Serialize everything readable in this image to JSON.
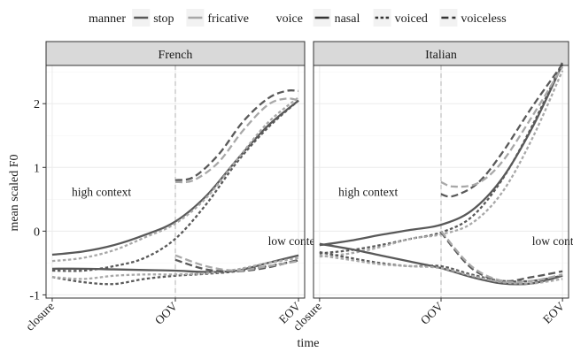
{
  "chart_data": {
    "type": "line",
    "x_axis": {
      "label": "time",
      "ticks": [
        {
          "pos": 0,
          "label": "closure"
        },
        {
          "pos": 1,
          "label": "OOV"
        },
        {
          "pos": 2,
          "label": "EOV"
        }
      ],
      "range": [
        -0.05,
        2.05
      ]
    },
    "y_axis": {
      "label": "mean scaled F0",
      "ticks": [
        -1,
        0,
        1,
        2
      ],
      "range": [
        -1.05,
        2.6
      ]
    },
    "legend": {
      "position": "top",
      "groups": [
        {
          "title": "manner",
          "items": [
            {
              "label": "stop",
              "color": "#595959",
              "dash": "solid"
            },
            {
              "label": "fricative",
              "color": "#a8a8a8",
              "dash": "solid"
            }
          ]
        },
        {
          "title": "voice",
          "items": [
            {
              "label": "nasal",
              "color": "#333333",
              "dash": "solid"
            },
            {
              "label": "voiced",
              "color": "#333333",
              "dash": "dotted"
            },
            {
              "label": "voiceless",
              "color": "#333333",
              "dash": "dashed"
            }
          ]
        }
      ]
    },
    "colors": {
      "stop": "#595959",
      "fricative": "#a8a8a8",
      "strip_bg": "#d9d9d9",
      "panel_border": "#333333",
      "grid": "#ebebeb",
      "oov_line": "#bdbdbd"
    },
    "panels": [
      {
        "title": "French",
        "annotations": [
          {
            "text": "high context",
            "x": 0.4,
            "y": 0.55
          },
          {
            "text": "low context",
            "x": 1.98,
            "y": -0.22
          }
        ],
        "series": [
          {
            "manner": "stop",
            "voice": "nasal",
            "x": [
              0,
              0.25,
              0.5,
              0.75,
              1,
              1.25,
              1.5,
              1.75,
              2
            ],
            "y": [
              -0.37,
              -0.32,
              -0.22,
              -0.06,
              0.15,
              0.55,
              1.12,
              1.65,
              2.05
            ]
          },
          {
            "manner": "stop",
            "voice": "voiced",
            "x": [
              0,
              0.25,
              0.5,
              0.75,
              1,
              1.25,
              1.5,
              1.75,
              2
            ],
            "y": [
              -0.62,
              -0.62,
              -0.55,
              -0.42,
              -0.12,
              0.42,
              1.08,
              1.62,
              2.05
            ]
          },
          {
            "manner": "fricative",
            "voice": "voiced",
            "x": [
              0,
              0.25,
              0.5,
              0.75,
              1,
              1.25,
              1.5,
              1.75,
              2
            ],
            "y": [
              -0.47,
              -0.42,
              -0.3,
              -0.1,
              0.12,
              0.52,
              1.12,
              1.7,
              2.1
            ]
          },
          {
            "manner": "stop",
            "voice": "voiceless",
            "x": [
              1,
              1.15,
              1.35,
              1.55,
              1.75,
              1.9,
              2
            ],
            "y": [
              0.8,
              0.85,
              1.2,
              1.72,
              2.08,
              2.2,
              2.2
            ]
          },
          {
            "manner": "fricative",
            "voice": "voiceless",
            "x": [
              1,
              1.15,
              1.35,
              1.55,
              1.75,
              1.9,
              2
            ],
            "y": [
              0.77,
              0.8,
              1.08,
              1.58,
              1.98,
              2.08,
              2.05
            ]
          },
          {
            "manner": "stop",
            "voice": "nasal",
            "x": [
              0,
              0.25,
              0.5,
              0.75,
              1,
              1.25,
              1.5,
              1.75,
              2
            ],
            "y": [
              -0.59,
              -0.59,
              -0.6,
              -0.61,
              -0.62,
              -0.64,
              -0.62,
              -0.5,
              -0.38
            ]
          },
          {
            "manner": "stop",
            "voice": "voiced",
            "x": [
              0,
              0.25,
              0.5,
              0.75,
              1,
              1.25,
              1.5,
              1.75,
              2
            ],
            "y": [
              -0.72,
              -0.8,
              -0.83,
              -0.75,
              -0.7,
              -0.67,
              -0.63,
              -0.55,
              -0.46
            ]
          },
          {
            "manner": "fricative",
            "voice": "voiced",
            "x": [
              0,
              0.25,
              0.5,
              0.75,
              1,
              1.25,
              1.5,
              1.75,
              2
            ],
            "y": [
              -0.72,
              -0.75,
              -0.7,
              -0.68,
              -0.68,
              -0.66,
              -0.6,
              -0.5,
              -0.42
            ]
          },
          {
            "manner": "stop",
            "voice": "voiceless",
            "x": [
              1,
              1.25,
              1.5,
              1.75,
              2
            ],
            "y": [
              -0.45,
              -0.6,
              -0.63,
              -0.57,
              -0.45
            ]
          },
          {
            "manner": "fricative",
            "voice": "voiceless",
            "x": [
              1,
              1.25,
              1.5,
              1.75,
              2
            ],
            "y": [
              -0.38,
              -0.55,
              -0.62,
              -0.55,
              -0.47
            ]
          }
        ]
      },
      {
        "title": "Italian",
        "annotations": [
          {
            "text": "high context",
            "x": 0.4,
            "y": 0.55
          },
          {
            "text": "low context",
            "x": 1.98,
            "y": -0.22
          }
        ],
        "series": [
          {
            "manner": "stop",
            "voice": "nasal",
            "x": [
              0,
              0.25,
              0.5,
              0.75,
              1,
              1.25,
              1.5,
              1.75,
              2
            ],
            "y": [
              -0.22,
              -0.15,
              -0.06,
              0.02,
              0.1,
              0.32,
              0.82,
              1.62,
              2.62
            ]
          },
          {
            "manner": "stop",
            "voice": "voiced",
            "x": [
              0,
              0.25,
              0.5,
              0.75,
              1,
              1.25,
              1.5,
              1.75,
              2
            ],
            "y": [
              -0.35,
              -0.3,
              -0.22,
              -0.12,
              -0.02,
              0.22,
              0.8,
              1.65,
              2.65
            ]
          },
          {
            "manner": "fricative",
            "voice": "voiced",
            "x": [
              0,
              0.25,
              0.5,
              0.75,
              1,
              1.25,
              1.5,
              1.75,
              2
            ],
            "y": [
              -0.4,
              -0.35,
              -0.25,
              -0.12,
              -0.05,
              0.12,
              0.6,
              1.45,
              2.52
            ]
          },
          {
            "manner": "stop",
            "voice": "voiceless",
            "x": [
              1,
              1.1,
              1.3,
              1.5,
              1.75,
              2
            ],
            "y": [
              0.58,
              0.55,
              0.75,
              1.22,
              1.95,
              2.62
            ]
          },
          {
            "manner": "fricative",
            "voice": "voiceless",
            "x": [
              1,
              1.1,
              1.3,
              1.5,
              1.75,
              2
            ],
            "y": [
              0.77,
              0.7,
              0.75,
              1.08,
              1.8,
              2.58
            ]
          },
          {
            "manner": "stop",
            "voice": "nasal",
            "x": [
              0,
              0.25,
              0.5,
              0.75,
              1,
              1.25,
              1.5,
              1.75,
              2
            ],
            "y": [
              -0.2,
              -0.28,
              -0.38,
              -0.48,
              -0.58,
              -0.72,
              -0.82,
              -0.82,
              -0.7
            ]
          },
          {
            "manner": "stop",
            "voice": "voiced",
            "x": [
              0,
              0.25,
              0.5,
              0.75,
              1,
              1.25,
              1.5,
              1.75,
              2
            ],
            "y": [
              -0.33,
              -0.42,
              -0.5,
              -0.55,
              -0.55,
              -0.68,
              -0.78,
              -0.78,
              -0.7
            ]
          },
          {
            "manner": "fricative",
            "voice": "voiced",
            "x": [
              0,
              0.25,
              0.5,
              0.75,
              1,
              1.25,
              1.5,
              1.75,
              2
            ],
            "y": [
              -0.38,
              -0.45,
              -0.52,
              -0.55,
              -0.58,
              -0.7,
              -0.8,
              -0.82,
              -0.75
            ]
          },
          {
            "manner": "stop",
            "voice": "voiceless",
            "x": [
              1,
              1.25,
              1.5,
              1.75,
              2
            ],
            "y": [
              -0.02,
              -0.58,
              -0.78,
              -0.72,
              -0.63
            ]
          },
          {
            "manner": "fricative",
            "voice": "voiceless",
            "x": [
              1,
              1.25,
              1.5,
              1.75,
              2
            ],
            "y": [
              0.0,
              -0.55,
              -0.78,
              -0.78,
              -0.68
            ]
          }
        ]
      }
    ]
  }
}
